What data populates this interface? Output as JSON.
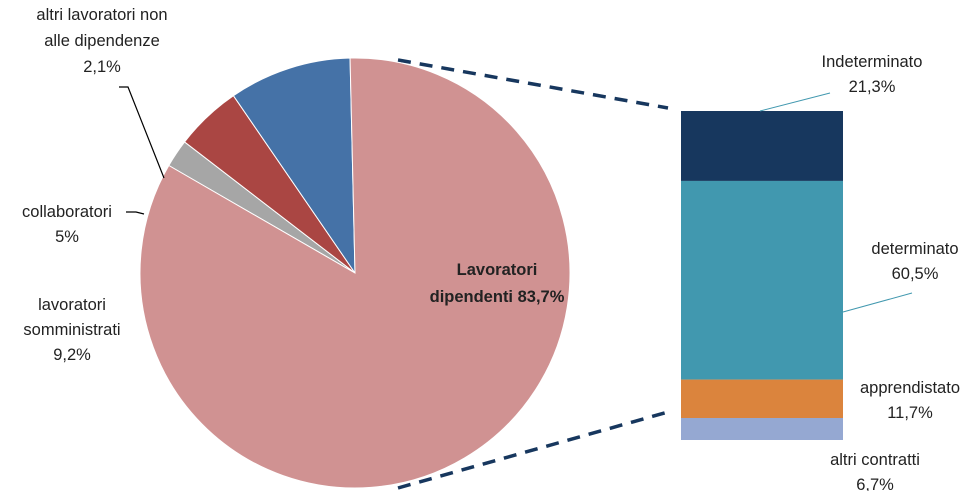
{
  "chart_data": [
    {
      "type": "pie",
      "colors": [
        "#D09292",
        "#4572A7",
        "#AA4643",
        "#A6A6A6"
      ],
      "slices": [
        {
          "id": "lavoratori-dipendenti",
          "label_lines": [
            "Lavoratori",
            "dipendenti  83,7%"
          ],
          "value": 83.7,
          "bold": true
        },
        {
          "id": "lavoratori-somministrati",
          "label_lines": [
            "lavoratori",
            "somministrati",
            "9,2%"
          ],
          "value": 9.2,
          "bold": false
        },
        {
          "id": "collaboratori",
          "label_lines": [
            "collaboratori",
            "5%"
          ],
          "value": 5.0,
          "bold": false
        },
        {
          "id": "altri-lavoratori",
          "label_lines": [
            "altri lavoratori non",
            "alle dipendenze",
            "2,1%"
          ],
          "value": 2.1,
          "bold": false
        }
      ]
    },
    {
      "type": "bar",
      "stacked": true,
      "colors": [
        "#17375E",
        "#4198AF",
        "#DB843D",
        "#95A8D2"
      ],
      "segments": [
        {
          "id": "indeterminato",
          "label_lines": [
            "Indeterminato",
            "21,3%"
          ],
          "value": 21.3
        },
        {
          "id": "determinato",
          "label_lines": [
            "determinato",
            "60,5%"
          ],
          "value": 60.5
        },
        {
          "id": "apprendistato",
          "label_lines": [
            "apprendistato",
            "11,7%"
          ],
          "value": 11.7
        },
        {
          "id": "altri-contratti",
          "label_lines": [
            "altri contratti",
            "6,7%"
          ],
          "value": 6.7
        }
      ]
    }
  ]
}
